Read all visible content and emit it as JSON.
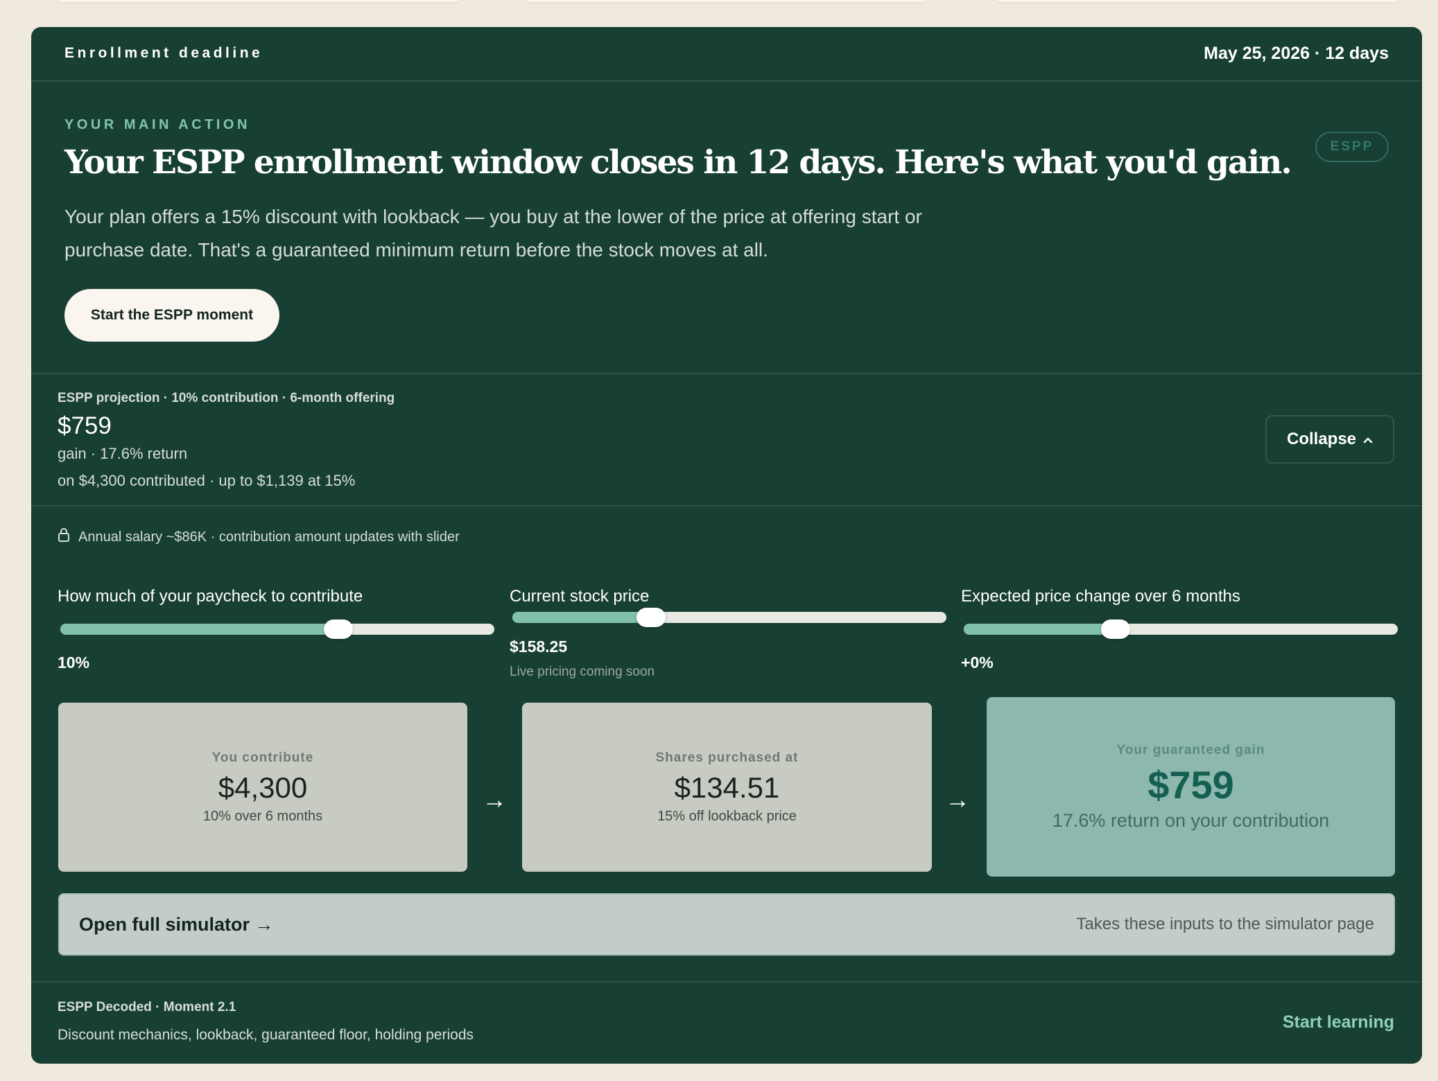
{
  "deadline": {
    "label": "Enrollment deadline",
    "date": "May 25, 2026 · 12 days"
  },
  "hero": {
    "eyebrow": "YOUR MAIN ACTION",
    "badge": "ESPP",
    "headline": "Your ESPP enrollment window closes in 12 days. Here's what you'd gain.",
    "subtext": "Your plan offers a 15% discount with lookback — you buy at the lower of the price at offering start or purchase date. That's a guaranteed minimum return before the stock moves at all.",
    "cta_label": "Start the ESPP moment"
  },
  "projection": {
    "title": "ESPP projection · 10% contribution · 6-month offering",
    "amount": "$759",
    "sub": "gain · 17.6% return",
    "sub2": "on $4,300 contributed · up to $1,139 at 15%",
    "collapse_label": "Collapse",
    "collapse_icon": "chevron-up-icon"
  },
  "salary_note": {
    "icon": "lock-icon",
    "text": "Annual salary ~$86K · contribution amount updates with slider"
  },
  "sliders": {
    "contribution": {
      "label": "How much of your paycheck to contribute",
      "value": "10%",
      "fill_fraction": 0.64
    },
    "stock_price": {
      "label": "Current stock price",
      "value": "$158.25",
      "note": "Live pricing coming soon",
      "fill_fraction": 0.32
    },
    "price_change": {
      "label": "Expected price change over 6 months",
      "value": "+0%",
      "fill_fraction": 0.35
    }
  },
  "breakdown": {
    "contribute": {
      "label": "You contribute",
      "value": "$4,300",
      "note": "10% over 6 months"
    },
    "purchase": {
      "label": "Shares purchased at",
      "value": "$134.51",
      "note": "15% off lookback price"
    },
    "gain": {
      "label": "Your guaranteed gain",
      "value": "$759",
      "note": "17.6% return on your contribution"
    },
    "arrow": "→"
  },
  "simulator": {
    "title": "Open full simulator →",
    "note": "Takes these inputs to the simulator page"
  },
  "footer": {
    "title": "ESPP Decoded · Moment 2.1",
    "subtitle": "Discount mechanics, lookback, guaranteed floor, holding periods",
    "link": "Start learning"
  },
  "colors": {
    "card_bg": "#183f33",
    "accent": "#82c0ae",
    "gain_text": "#145f51",
    "page_bg": "#efe9de"
  }
}
